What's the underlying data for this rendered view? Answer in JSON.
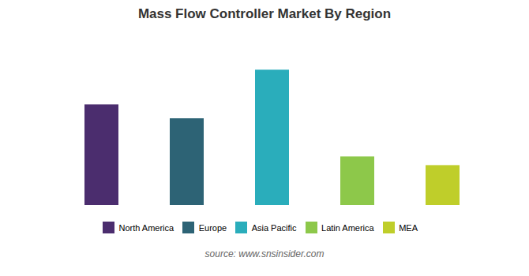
{
  "chart_data": {
    "type": "bar",
    "title": "Mass Flow Controller Market By Region",
    "categories": [
      "North America",
      "Europe",
      "Asia Pacific",
      "Latin America",
      "MEA"
    ],
    "values": [
      58,
      50,
      78,
      28,
      23
    ],
    "colors": [
      "#4B2D6E",
      "#2D6375",
      "#2AADBB",
      "#8DC84A",
      "#BFCE2A"
    ],
    "ylim": [
      0,
      100
    ],
    "grid": false,
    "tick_labels": false,
    "legend": "bottom",
    "annotations": [
      "source: www.snsinsider.com"
    ]
  }
}
